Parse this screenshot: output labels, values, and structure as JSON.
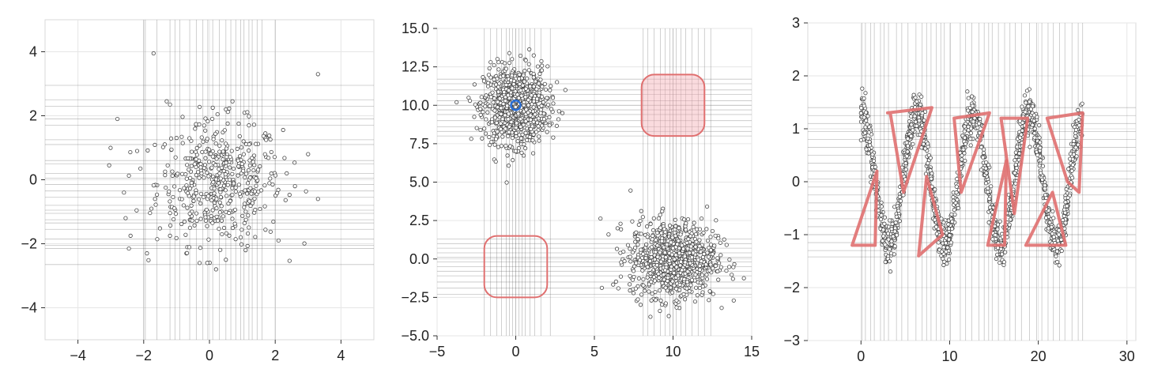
{
  "chart_data": [
    {
      "type": "scatter",
      "title": "",
      "xlim": [
        -5,
        5
      ],
      "ylim": [
        -5,
        5
      ],
      "grid": true,
      "xticks": [
        -4,
        -2,
        0,
        2,
        4
      ],
      "yticks": [
        -4,
        -2,
        0,
        2,
        4
      ],
      "xtick_labels": [
        "−4",
        "−2",
        "0",
        "2",
        "4"
      ],
      "ytick_labels": [
        "−4",
        "−2",
        "0",
        "2",
        "4"
      ],
      "point_style": {
        "fill": "#ffffff",
        "stroke": "#444444"
      },
      "series": [
        {
          "points": [
            [
              -1.7,
              3.95
            ],
            [
              3.3,
              3.3
            ],
            [
              -2.8,
              1.9
            ],
            [
              -1.3,
              2.45
            ],
            [
              -3.05,
              0.45
            ],
            [
              -2.2,
              0.9
            ],
            [
              -2.1,
              0.35
            ],
            [
              -2.6,
              -0.4
            ],
            [
              -2.55,
              -1.2
            ],
            [
              -2.4,
              -1.75
            ],
            [
              -2.45,
              -2.15
            ],
            [
              -1.9,
              -2.3
            ],
            [
              -1.2,
              -1.75
            ],
            [
              3.0,
              0.8
            ],
            [
              2.35,
              0.2
            ],
            [
              2.6,
              -0.2
            ],
            [
              3.3,
              -0.6
            ],
            [
              2.1,
              -1.9
            ],
            [
              -0.7,
              -2.3
            ],
            [
              -0.3,
              -2.6
            ],
            [
              0.2,
              -2.8
            ],
            [
              0.5,
              -2.5
            ],
            [
              1.1,
              -2.2
            ],
            [
              0.7,
              2.45
            ],
            [
              -1.2,
              2.35
            ],
            [
              0.1,
              2.25
            ],
            [
              0.5,
              2.2
            ],
            [
              -0.4,
              1.7
            ],
            [
              1.2,
              1.7
            ],
            [
              1.7,
              1.45
            ]
          ]
        }
      ],
      "crosshair_x": [
        -2.0,
        -1.95,
        -1.6,
        -1.2,
        -1.05,
        -0.9,
        -0.6,
        -0.4,
        -0.2,
        -0.05,
        0.1,
        0.3,
        0.5,
        0.65,
        0.8,
        0.95,
        1.05,
        1.2,
        1.3,
        1.45,
        1.6,
        2.0
      ],
      "crosshair_y": [
        2.95,
        2.5,
        2.3,
        1.9,
        1.7,
        1.25,
        1.1,
        0.6,
        0.5,
        0.2,
        0.05,
        -0.15,
        -0.35,
        -0.55,
        -0.8,
        -0.95,
        -1.05,
        -1.25,
        -1.35,
        -1.55,
        -1.85,
        -2.05,
        -2.15,
        -2.65
      ]
    },
    {
      "type": "scatter",
      "title": "",
      "xlim": [
        -5,
        15
      ],
      "ylim": [
        -5,
        15
      ],
      "grid": true,
      "xticks": [
        -5,
        0,
        5,
        10,
        15
      ],
      "yticks": [
        -5,
        -2.5,
        0,
        2.5,
        5,
        7.5,
        10,
        12.5,
        15
      ],
      "xtick_labels": [
        "−5",
        "0",
        "5",
        "10",
        "15"
      ],
      "ytick_labels": [
        "−5.0",
        "−2.5",
        "0.0",
        "2.5",
        "5.0",
        "7.5",
        "10.0",
        "12.5",
        "15.0"
      ],
      "point_style": {
        "fill": "#ffffff",
        "stroke": "#444444"
      },
      "series": [
        {
          "cluster_center": [
            0,
            10
          ],
          "cluster_spread": [
            2.2,
            3.0
          ]
        },
        {
          "cluster_center": [
            10,
            0
          ],
          "cluster_spread": [
            3.0,
            3.0
          ]
        }
      ],
      "highlight_shapes": [
        {
          "shape": "rounded-rect",
          "x_range": [
            -2,
            2
          ],
          "y_range": [
            -2.5,
            1.5
          ],
          "color": "#e07070",
          "fill": "none"
        },
        {
          "shape": "rounded-rect",
          "x_range": [
            8,
            12
          ],
          "y_range": [
            8,
            12
          ],
          "color": "#e07070",
          "fill": "#f5b0b5"
        },
        {
          "shape": "circle",
          "center": [
            0,
            10
          ],
          "radius": 0.3,
          "color": "#2a6fd6"
        }
      ],
      "crosshair_x": [
        -2,
        -1.6,
        -1.2,
        -0.9,
        -0.6,
        -0.4,
        -0.2,
        0.0,
        0.2,
        0.4,
        0.6,
        0.9,
        1.2,
        1.6,
        2.2,
        8.1,
        8.4,
        8.8,
        9.2,
        9.5,
        9.8,
        10.0,
        10.2,
        10.5,
        10.8,
        11.2,
        11.6,
        12.0,
        12.4
      ],
      "crosshair_y": [
        11.7,
        11.4,
        11.0,
        10.7,
        10.3,
        10.0,
        9.7,
        9.4,
        9.0,
        8.6,
        8.3,
        8.0,
        1.3,
        1.0,
        0.7,
        0.4,
        0.1,
        -0.2,
        -0.5,
        -0.8,
        -1.1,
        -1.5,
        -1.9,
        -2.3
      ]
    },
    {
      "type": "scatter",
      "title": "",
      "xlim": [
        -6,
        31
      ],
      "ylim": [
        -3,
        3
      ],
      "grid": true,
      "xticks": [
        0,
        10,
        20,
        30
      ],
      "yticks": [
        -3,
        -2,
        -1,
        0,
        1,
        2,
        3
      ],
      "xtick_labels": [
        "0",
        "10",
        "20",
        "30"
      ],
      "ytick_labels": [
        "−3",
        "−2",
        "−1",
        "0",
        "1",
        "2",
        "3"
      ],
      "point_style": {
        "fill": "#ffffff",
        "stroke": "#444444"
      },
      "series": [
        {
          "function": "sin",
          "x_range": [
            0,
            25
          ],
          "amplitude": 1.3,
          "period": 6.3,
          "noise": 0.2
        }
      ],
      "highlight_strokes": [
        [
          [
            3,
            1.3
          ],
          [
            8,
            1.4
          ],
          [
            4.8,
            -0.2
          ],
          [
            3.3,
            1.3
          ]
        ],
        [
          [
            10.5,
            1.2
          ],
          [
            14.5,
            1.3
          ],
          [
            11.3,
            -0.2
          ],
          [
            10.5,
            1.2
          ]
        ],
        [
          [
            15.8,
            1.2
          ],
          [
            18.8,
            1.2
          ],
          [
            17.3,
            -0.6
          ],
          [
            15.8,
            1.2
          ]
        ],
        [
          [
            21,
            1.2
          ],
          [
            25,
            1.3
          ],
          [
            24.6,
            -0.2
          ],
          [
            23.3,
            0.0
          ],
          [
            21,
            1.2
          ]
        ],
        [
          [
            -1,
            -1.2
          ],
          [
            1.6,
            -1.2
          ],
          [
            1.8,
            0.2
          ],
          [
            -1,
            -1.2
          ]
        ],
        [
          [
            6.5,
            -1.4
          ],
          [
            9.2,
            -1.0
          ],
          [
            7.4,
            0.1
          ],
          [
            6.5,
            -1.4
          ]
        ],
        [
          [
            14.3,
            -1.2
          ],
          [
            16.2,
            -1.2
          ],
          [
            16.4,
            0.4
          ],
          [
            14.3,
            -1.2
          ]
        ],
        [
          [
            18.6,
            -1.2
          ],
          [
            23.1,
            -1.2
          ],
          [
            21.6,
            -0.2
          ],
          [
            18.6,
            -1.2
          ]
        ]
      ],
      "crosshair_x": [
        0.1,
        0.5,
        1.1,
        1.5,
        2.2,
        2.6,
        3.1,
        4.0,
        4.6,
        5.3,
        6.2,
        6.9,
        7.4,
        7.9,
        8.5,
        9.0,
        9.4,
        10.1,
        11.2,
        11.8,
        12.5,
        13.3,
        13.9,
        14.4,
        14.8,
        15.5,
        16.2,
        16.8,
        17.4,
        18.1,
        19.0,
        19.8,
        20.4,
        21.1,
        21.7,
        22.4,
        23.0,
        23.8,
        24.5,
        25.0
      ],
      "crosshair_y": [
        1.4,
        1.25,
        1.1,
        0.95,
        0.8,
        0.65,
        0.5,
        0.35,
        0.2,
        0.05,
        -0.1,
        -0.25,
        -0.4,
        -0.55,
        -0.7,
        -0.85,
        -1.0,
        -1.15,
        -1.3,
        -1.42
      ]
    }
  ]
}
